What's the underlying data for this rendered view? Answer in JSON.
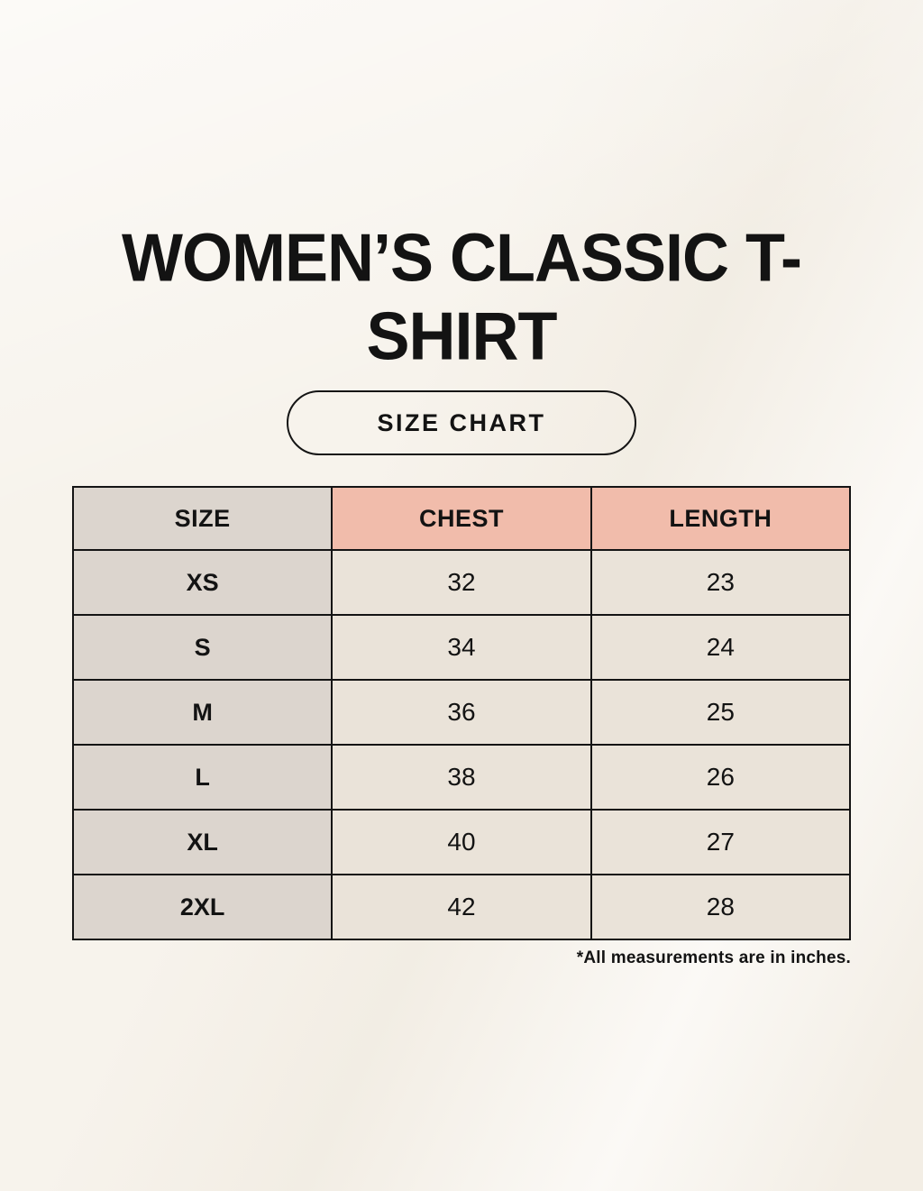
{
  "page": {
    "title": "WOMEN’S CLASSIC T-SHIRT",
    "badge_label": "SIZE CHART",
    "footnote": "*All measurements are in inches."
  },
  "table": {
    "headers": [
      "SIZE",
      "CHEST",
      "LENGTH"
    ],
    "rows": [
      {
        "size": "XS",
        "chest": "32",
        "length": "23"
      },
      {
        "size": "S",
        "chest": "34",
        "length": "24"
      },
      {
        "size": "M",
        "chest": "36",
        "length": "25"
      },
      {
        "size": "L",
        "chest": "38",
        "length": "26"
      },
      {
        "size": "XL",
        "chest": "40",
        "length": "27"
      },
      {
        "size": "2XL",
        "chest": "42",
        "length": "28"
      }
    ],
    "units": "inches"
  },
  "colors": {
    "bg": "#f7f3ec",
    "header-pink": "#f1bcab",
    "col-taupe": "#dcd5ce",
    "cell-cream": "#eae3d9",
    "border": "#141414",
    "text": "#131313"
  }
}
